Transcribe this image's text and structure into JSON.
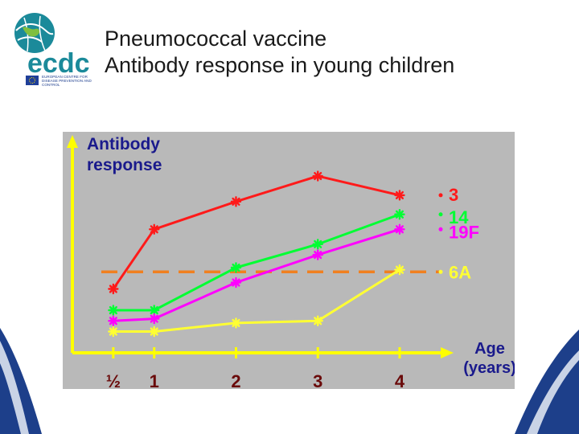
{
  "slide": {
    "title_line1": "Pneumococcal vaccine",
    "title_line2": "Antibody response in young children"
  },
  "logo": {
    "text": "ecdc",
    "caption_lines": [
      "EUROPEAN CENTRE FOR",
      "DISEASE PREVENTION AND",
      "CONTROL"
    ],
    "colors": {
      "teal": "#1b8a9a",
      "blue": "#1f3f8f",
      "green": "#7fbf3f",
      "eu_flag": "#1f3f99"
    }
  },
  "colors": {
    "panel_bg": "#b9b9b9",
    "axis": "#ffff00",
    "axis_label": "#1a1a8c",
    "tick_label": "#6a0a0a",
    "threshold": "#f08020",
    "swoosh": "#1d3f8a"
  },
  "chart_data": {
    "type": "line",
    "ylabel": "Antibody response",
    "xlabel": "Age (years)",
    "xlabel_lines": [
      "Age",
      "(years)"
    ],
    "ylabel_lines": [
      "Antibody",
      "response"
    ],
    "x": [
      0.5,
      1,
      2,
      3,
      4
    ],
    "x_tick_labels": [
      "½",
      "1",
      "2",
      "3",
      "4"
    ],
    "xlim": [
      0.0,
      4.6
    ],
    "ylim": [
      0,
      100
    ],
    "grid": false,
    "legend": "inline-right",
    "threshold": 38,
    "series": [
      {
        "name": "3",
        "color": "#ff1a1a",
        "values": [
          30,
          58,
          71,
          83,
          74
        ]
      },
      {
        "name": "14",
        "color": "#00ff33",
        "values": [
          20,
          20,
          40,
          51,
          65
        ]
      },
      {
        "name": "19F",
        "color": "#ff00ff",
        "values": [
          15,
          16,
          33,
          46,
          58
        ]
      },
      {
        "name": "6A",
        "color": "#ffff33",
        "values": [
          10,
          10,
          14,
          15,
          39
        ]
      }
    ]
  }
}
